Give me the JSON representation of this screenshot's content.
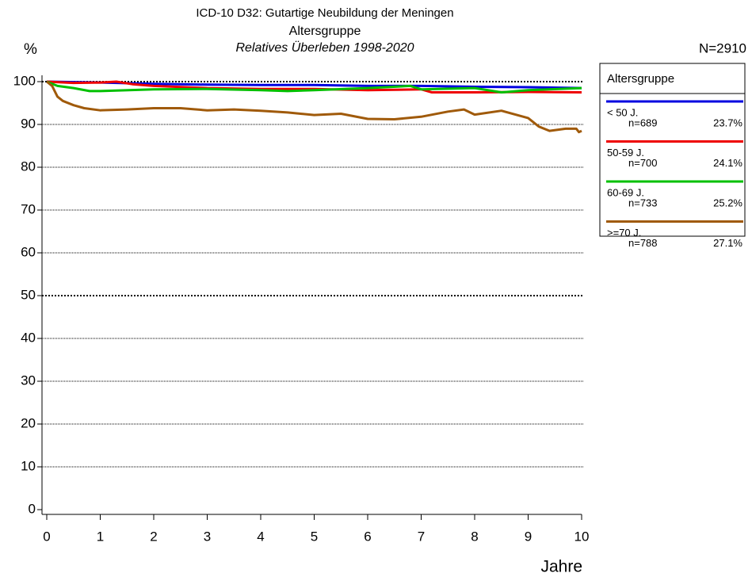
{
  "chart_data": {
    "type": "line",
    "title": "ICD-10 D32: Gutartige Neubildung der Meningen",
    "subtitle": "Altersgruppe",
    "subtitle2": "Relatives Überleben 1998-2020",
    "y_label": "%",
    "x_label": "Jahre",
    "total_label": "N=2910",
    "legend_title": "Altersgruppe",
    "xlim": [
      0,
      10
    ],
    "xticks": [
      0,
      1,
      2,
      3,
      4,
      5,
      6,
      7,
      8,
      9,
      10
    ],
    "ylim": [
      0,
      100
    ],
    "yticks": [
      0,
      10,
      20,
      30,
      40,
      50,
      60,
      70,
      80,
      90,
      100
    ],
    "grid": true,
    "emphasized_gridlines": [
      50,
      100
    ],
    "series": [
      {
        "name": "< 50 J.",
        "n_label": "n=689",
        "share_label": "23.7%",
        "color": "#0000e0",
        "x": [
          0,
          1,
          2,
          3,
          4,
          5,
          6,
          7,
          8,
          9,
          10
        ],
        "values": [
          100,
          99.8,
          99.5,
          99.3,
          99.2,
          99.2,
          99,
          99,
          98.8,
          98.7,
          98.5
        ]
      },
      {
        "name": "50-59 J.",
        "n_label": "n=700",
        "share_label": "24.1%",
        "color": "#ee0000",
        "x": [
          0,
          0.5,
          1,
          1.3,
          1.6,
          2,
          3,
          4,
          5,
          6,
          7,
          7.2,
          8,
          9,
          10
        ],
        "values": [
          100,
          99.7,
          99.8,
          100,
          99.4,
          99,
          98.5,
          98.3,
          98.3,
          98,
          98.2,
          97.5,
          97.5,
          97.6,
          97.5
        ]
      },
      {
        "name": "60-69 J.",
        "n_label": "n=733",
        "share_label": "25.2%",
        "color": "#00c000",
        "x": [
          0,
          0.2,
          0.5,
          0.8,
          1,
          2,
          3,
          4,
          4.5,
          5,
          6,
          6.8,
          7,
          8,
          8.5,
          9,
          10
        ],
        "values": [
          100,
          99,
          98.5,
          97.8,
          97.8,
          98.2,
          98.3,
          98,
          97.8,
          98,
          98.5,
          99,
          98.2,
          98.5,
          97.5,
          98,
          98.5
        ]
      },
      {
        "name": ">=70 J.",
        "n_label": "n=788",
        "share_label": "27.1%",
        "color": "#a05a0a",
        "x": [
          0,
          0.1,
          0.2,
          0.3,
          0.5,
          0.7,
          1,
          1.5,
          2,
          2.5,
          3,
          3.5,
          4,
          4.5,
          5,
          5.5,
          6,
          6.5,
          7,
          7.5,
          7.8,
          8,
          8.5,
          9,
          9.2,
          9.4,
          9.7,
          9.9,
          9.95,
          10
        ],
        "values": [
          100,
          99,
          96.5,
          95.5,
          94.5,
          93.8,
          93.3,
          93.5,
          93.8,
          93.8,
          93.3,
          93.5,
          93.2,
          92.8,
          92.2,
          92.5,
          91.3,
          91.2,
          91.8,
          93,
          93.5,
          92.3,
          93.2,
          91.5,
          89.5,
          88.5,
          89,
          89,
          88.2,
          88.5
        ]
      }
    ]
  }
}
